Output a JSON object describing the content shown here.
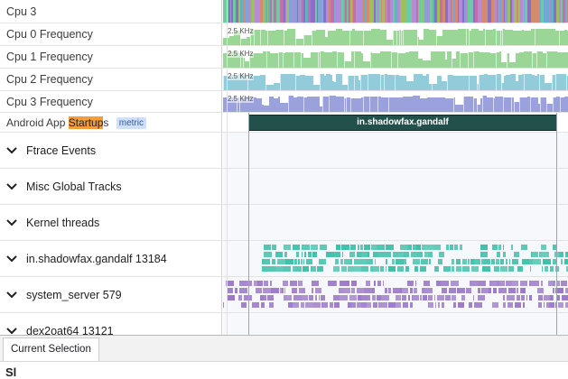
{
  "tracks": {
    "cpu3": "Cpu 3",
    "freq0": "Cpu 0 Frequency",
    "freq1": "Cpu 1 Frequency",
    "freq2": "Cpu 2 Frequency",
    "freq3": "Cpu 3 Frequency",
    "freq_label": "2.5 KHz",
    "startups_prefix": "Android App ",
    "startups_hit": "Startup",
    "startups_suffix": "s",
    "metric_chip": "metric",
    "startup_slice": "in.shadowfax.gandalf"
  },
  "groups": {
    "ftrace": "Ftrace Events",
    "misc": "Misc Global Tracks",
    "kernel": "Kernel threads",
    "gandalf": "in.shadowfax.gandalf 13184",
    "system_server": "system_server 579",
    "dex2oat": "dex2oat64 13121"
  },
  "bottom": {
    "tab": "Current Selection",
    "cut_heading": "Sl"
  },
  "colors": {
    "freq0": "#8fd18b",
    "freq1": "#8fd18b",
    "freq2": "#86c6d6",
    "freq3": "#8f97d8",
    "gandalf_threads": "#3fbfa8",
    "system_server_threads": "#9b79c9",
    "startup_slice": "#22504a",
    "search_highlight": "#f39c3a"
  }
}
